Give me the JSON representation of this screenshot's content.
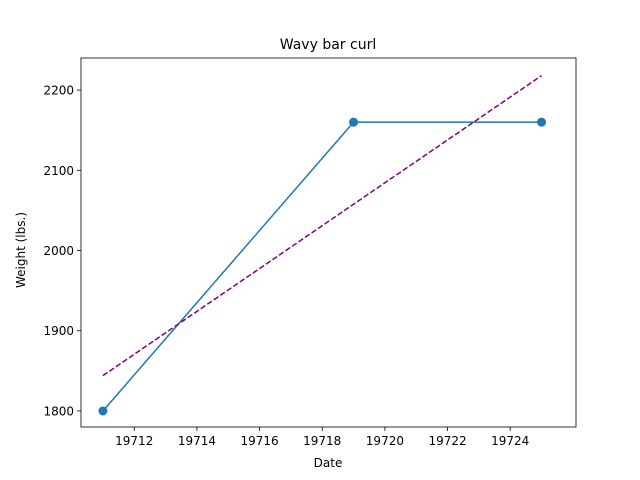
{
  "chart_data": {
    "type": "line",
    "title": "Wavy bar curl",
    "xlabel": "Date",
    "ylabel": "Weight (lbs.)",
    "xlim": [
      19710.3,
      19726.1
    ],
    "ylim": [
      1780,
      2240
    ],
    "xticks": [
      19712,
      19714,
      19716,
      19718,
      19720,
      19722,
      19724
    ],
    "yticks": [
      1800,
      1900,
      2000,
      2100,
      2200
    ],
    "grid": false,
    "series": [
      {
        "x": [
          19711,
          19719,
          19725
        ],
        "y": [
          1800,
          2160,
          2160
        ],
        "color": "#1f77b4",
        "style": "solid",
        "marker": "circle"
      },
      {
        "x": [
          19711,
          19725
        ],
        "y": [
          1844,
          2218
        ],
        "color": "#800080",
        "style": "dashed",
        "marker": "none"
      }
    ]
  }
}
